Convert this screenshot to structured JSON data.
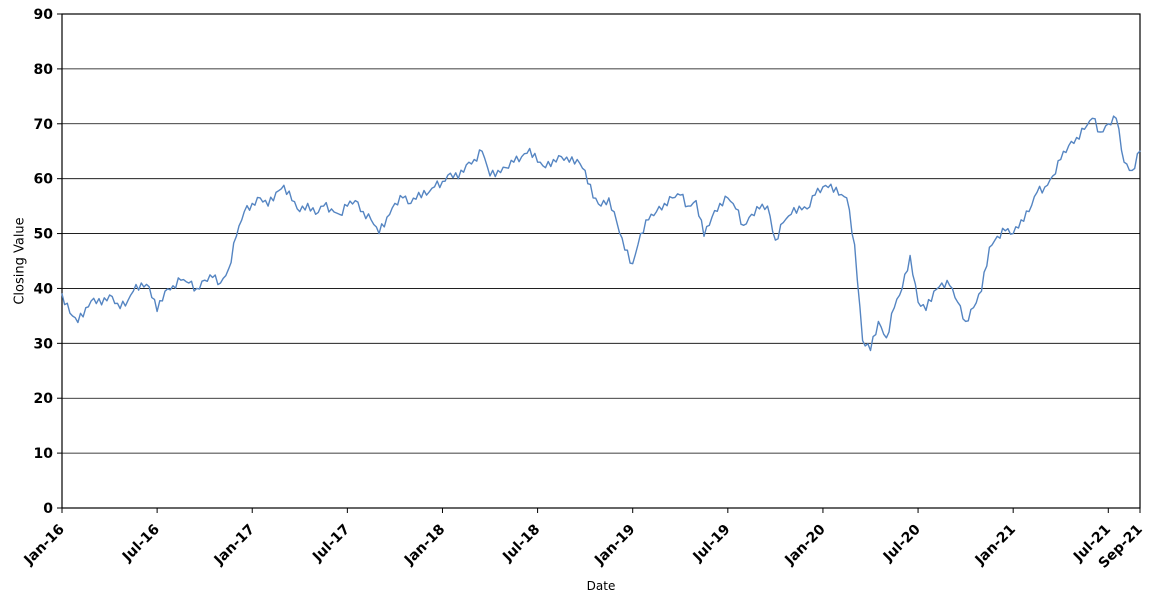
{
  "chart_data": {
    "type": "line",
    "title": "",
    "xlabel": "Date",
    "ylabel": "Closing Value",
    "ylim": [
      0,
      90
    ],
    "y_ticks": [
      0,
      10,
      20,
      30,
      40,
      50,
      60,
      70,
      80,
      90
    ],
    "x_domain_months": [
      0,
      68
    ],
    "x_ticks": [
      {
        "label": "Jan-16",
        "month": 0
      },
      {
        "label": "Jul-16",
        "month": 6
      },
      {
        "label": "Jan-17",
        "month": 12
      },
      {
        "label": "Jul-17",
        "month": 18
      },
      {
        "label": "Jan-18",
        "month": 24
      },
      {
        "label": "Jul-18",
        "month": 30
      },
      {
        "label": "Jan-19",
        "month": 36
      },
      {
        "label": "Jul-19",
        "month": 42
      },
      {
        "label": "Jan-20",
        "month": 48
      },
      {
        "label": "Jul-20",
        "month": 54
      },
      {
        "label": "Jan-21",
        "month": 60
      },
      {
        "label": "Jul-21",
        "month": 66
      },
      {
        "label": "Sep-21",
        "month": 68
      }
    ],
    "grid": {
      "horizontal": true,
      "vertical": false
    },
    "legend_position": "none",
    "line_color": "#5585c2",
    "axis_color": "#000000",
    "render_jitter": 0.8,
    "series": [
      {
        "name": "Closing Value",
        "start": "Jan-16",
        "end": "Sep-21",
        "months_per_point": 0.5,
        "values": [
          39.0,
          35.5,
          33.8,
          36.5,
          38.2,
          37.0,
          38.8,
          37.3,
          36.8,
          39.5,
          41.0,
          40.3,
          35.8,
          39.5,
          40.5,
          41.5,
          41.0,
          40.0,
          41.5,
          42.0,
          41.0,
          43.5,
          49.5,
          54.0,
          55.5,
          56.5,
          55.0,
          57.5,
          58.8,
          56.0,
          54.0,
          55.5,
          53.5,
          55.0,
          54.5,
          53.5,
          55.0,
          56.0,
          54.0,
          52.5,
          50.0,
          53.0,
          55.5,
          56.5,
          55.5,
          57.5,
          57.0,
          58.5,
          59.5,
          61.0,
          60.0,
          62.5,
          63.5,
          65.0,
          60.5,
          61.5,
          62.0,
          63.0,
          64.0,
          65.5,
          63.0,
          62.0,
          63.5,
          64.0,
          63.0,
          63.5,
          61.5,
          56.5,
          55.0,
          56.5,
          52.0,
          47.0,
          44.5,
          50.0,
          52.5,
          54.0,
          55.5,
          56.5,
          57.0,
          55.0,
          56.0,
          49.5,
          53.0,
          55.5,
          56.5,
          54.5,
          51.5,
          53.5,
          54.5,
          55.0,
          48.8,
          52.0,
          53.5,
          55.0,
          54.5,
          57.0,
          58.5,
          59.0,
          57.0,
          56.5,
          48.0,
          30.5,
          28.7,
          34.0,
          31.0,
          36.5,
          40.0,
          46.0,
          37.5,
          36.0,
          39.5,
          41.0,
          40.5,
          37.5,
          34.0,
          36.5,
          39.5,
          47.5,
          49.5,
          50.5,
          50.0,
          52.5,
          54.0,
          57.5,
          58.5,
          60.5,
          63.5,
          66.0,
          67.5,
          69.0,
          71.0,
          68.5,
          70.0,
          71.0,
          63.0,
          61.5,
          65.0
        ]
      }
    ]
  }
}
